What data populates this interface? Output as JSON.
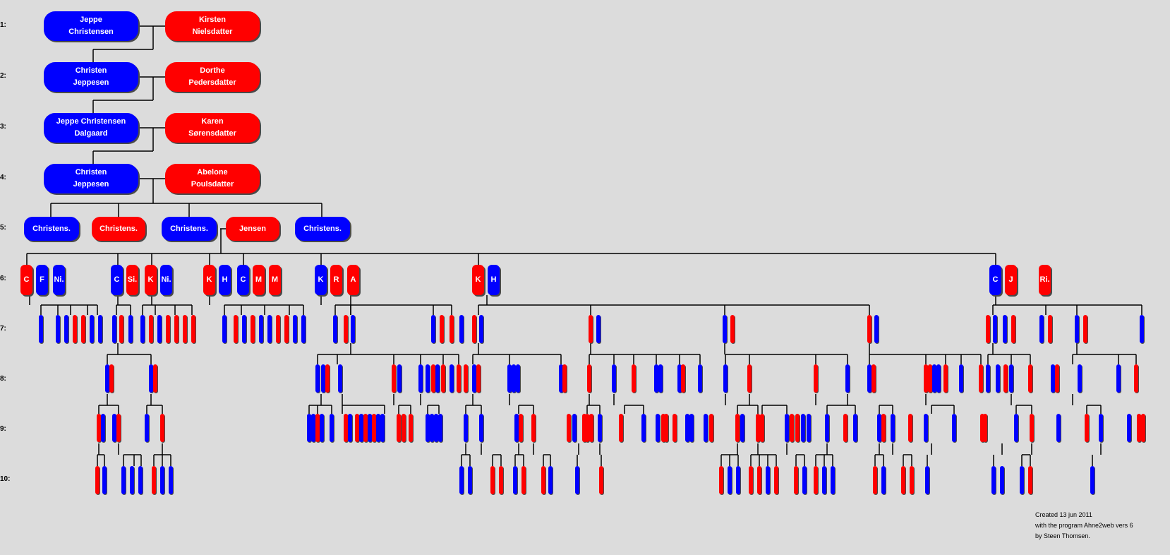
{
  "generations": [
    "1:",
    "2:",
    "3:",
    "4:",
    "5:",
    "6:",
    "7:",
    "8:",
    "9:",
    "10:"
  ],
  "couples": [
    {
      "husband": [
        "Jeppe",
        "Christensen"
      ],
      "wife": [
        "Kirsten",
        "Nielsdatter"
      ]
    },
    {
      "husband": [
        "Christen",
        "Jeppesen"
      ],
      "wife": [
        "Dorthe",
        "Pedersdatter"
      ]
    },
    {
      "husband": [
        "Jeppe Christensen",
        "Dalgaard"
      ],
      "wife": [
        "Karen",
        "Sørensdatter"
      ]
    },
    {
      "husband": [
        "Christen",
        "Jeppesen"
      ],
      "wife": [
        "Abelone",
        "Poulsdatter"
      ]
    }
  ],
  "gen5": [
    {
      "label": "Christens.",
      "sex": "male"
    },
    {
      "label": "Christens.",
      "sex": "female"
    },
    {
      "label": "Christens.",
      "sex": "male"
    },
    {
      "label": "Jensen",
      "sex": "female"
    },
    {
      "label": "Christens.",
      "sex": "male"
    }
  ],
  "gen6": [
    {
      "label": "C",
      "sex": "female"
    },
    {
      "label": "F",
      "sex": "male"
    },
    {
      "label": "Ni.",
      "sex": "male"
    },
    {
      "label": "C",
      "sex": "male"
    },
    {
      "label": "Si.",
      "sex": "female"
    },
    {
      "label": "K",
      "sex": "female"
    },
    {
      "label": "Ni.",
      "sex": "male"
    },
    {
      "label": "K",
      "sex": "female"
    },
    {
      "label": "H",
      "sex": "male"
    },
    {
      "label": "C",
      "sex": "male"
    },
    {
      "label": "M",
      "sex": "female"
    },
    {
      "label": "M",
      "sex": "female"
    },
    {
      "label": "K",
      "sex": "male"
    },
    {
      "label": "R",
      "sex": "female"
    },
    {
      "label": "A",
      "sex": "female"
    },
    {
      "label": "K",
      "sex": "female"
    },
    {
      "label": "H",
      "sex": "male"
    },
    {
      "label": "C",
      "sex": "male"
    },
    {
      "label": "J",
      "sex": "female"
    },
    {
      "label": "Ri.",
      "sex": "female"
    }
  ],
  "colors": {
    "male": "#0000ff",
    "female": "#ff0000",
    "background": "#dcdcdc",
    "line": "#000000"
  },
  "footer": [
    "Created 13 jun 2011",
    "with the program Ahne2web vers 6",
    "by Steen Thomsen."
  ]
}
